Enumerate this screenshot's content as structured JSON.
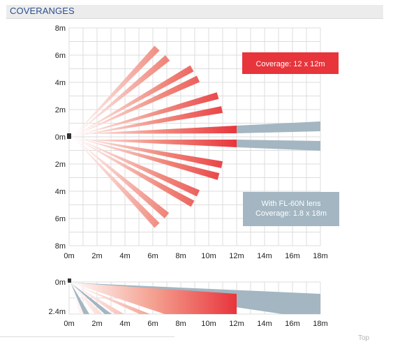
{
  "header": {
    "title": "COVERANGES"
  },
  "top_view": {
    "y_ticks": [
      "8m",
      "6m",
      "4m",
      "2m",
      "0m",
      "2m",
      "4m",
      "6m",
      "8m"
    ],
    "x_ticks": [
      "0m",
      "2m",
      "4m",
      "6m",
      "8m",
      "10m",
      "12m",
      "14m",
      "16m",
      "18m"
    ],
    "coverage_callout": "Coverage: 12 x 12m",
    "lens_callout_line1": "With FL-60N lens",
    "lens_callout_line2": "Coverage: 1.8 x 18m"
  },
  "side_view": {
    "y_ticks": [
      "0m",
      "2.4m"
    ],
    "x_ticks": [
      "0m",
      "2m",
      "4m",
      "6m",
      "8m",
      "10m",
      "12m",
      "14m",
      "16m",
      "18m"
    ]
  },
  "colors": {
    "red_zone": "#e8343b",
    "lens_zone": "#a3b6c2",
    "callout_red": "#e8343b",
    "callout_gray": "#a3b6c2",
    "header_text": "#2a4f8f"
  },
  "footer": {
    "top_link": "Top"
  }
}
